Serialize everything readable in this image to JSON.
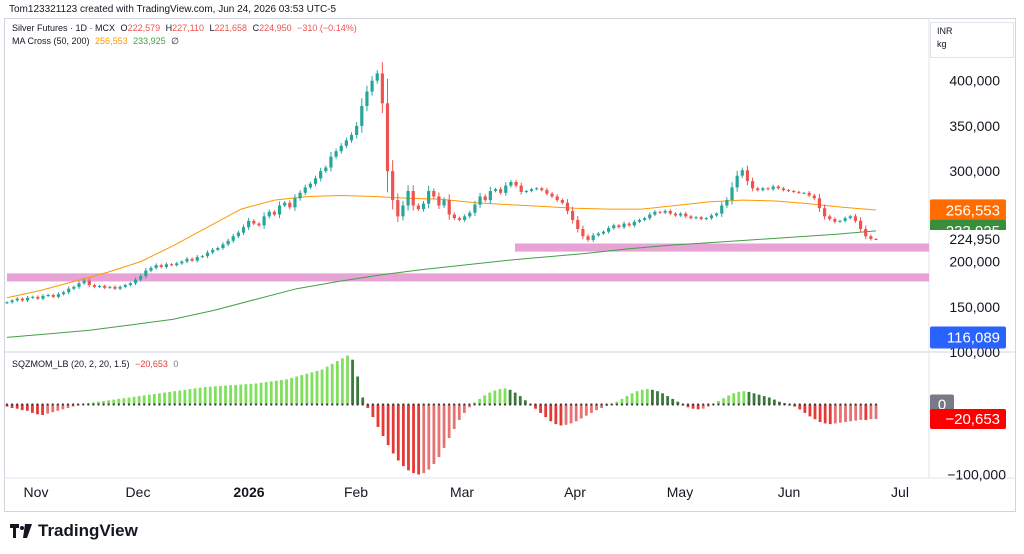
{
  "header": {
    "attribution": "Tom123321123 created with TradingView.com, Jun 24, 2026 03:53 UTC-5"
  },
  "legend": {
    "title": "Silver Futures · 1D · MCX",
    "o_label": "O",
    "o": "222,579",
    "h_label": "H",
    "h": "227,110",
    "l_label": "L",
    "l": "221,658",
    "c_label": "C",
    "c": "224,950",
    "change": "−310 (−0.14%)",
    "ma_name": "MA Cross (50, 200)",
    "ma_fast": "256,553",
    "ma_slow": "233,925",
    "ma_extra": "∅",
    "osc_name": "SQZMOM_LB (20, 2, 20, 1.5)",
    "osc_value": "−20,653",
    "osc_zero": "0"
  },
  "units": {
    "currency": "INR",
    "unit": "kg"
  },
  "footer": {
    "brand": "TradingView"
  },
  "colors": {
    "up": "#26a69a",
    "down": "#ef5350",
    "ma_fast": "#ff9800",
    "ma_slow": "#43a047",
    "zone": "#e499d1",
    "osc_lime": "#7ee05c",
    "osc_green": "#3a7a3a",
    "osc_red": "#e53935",
    "osc_maroon": "#e57373",
    "text": "#131722",
    "grid": "#d1d4dc"
  },
  "chart_data": [
    {
      "type": "candlestick",
      "title": "Silver Futures · 1D · MCX",
      "y_axis_ticks": [
        400000,
        350000,
        300000,
        200000,
        150000,
        100000
      ],
      "y_axis_range": [
        100000,
        445000
      ],
      "x_axis_ticks": [
        "Nov",
        "Dec",
        "2026",
        "Feb",
        "Mar",
        "Apr",
        "May",
        "Jun",
        "Jul"
      ],
      "price_labels": [
        {
          "value": 256553,
          "text": "256,553",
          "color": "#ff6d00"
        },
        {
          "value": 233925,
          "text": "233,925",
          "color": "#388e3c"
        },
        {
          "value": 224950,
          "text": "224,950",
          "color": "#ffffff"
        },
        {
          "value": 116089,
          "text": "116,089",
          "color": "#2962ff"
        }
      ],
      "support_zones": [
        [
          211000,
          220000
        ],
        [
          178000,
          187000
        ]
      ],
      "closes": [
        155000,
        157000,
        159000,
        157000,
        160000,
        161000,
        159000,
        162000,
        163000,
        161000,
        164000,
        166000,
        170000,
        172000,
        176000,
        179000,
        174000,
        172000,
        173000,
        171000,
        172000,
        170000,
        172000,
        174000,
        176000,
        180000,
        184000,
        190000,
        193000,
        196000,
        194000,
        197000,
        196000,
        198000,
        200000,
        203000,
        201000,
        205000,
        206000,
        210000,
        213000,
        215000,
        219000,
        223000,
        228000,
        232000,
        238000,
        245000,
        242000,
        240000,
        250000,
        255000,
        252000,
        262000,
        265000,
        260000,
        270000,
        276000,
        282000,
        286000,
        292000,
        300000,
        304000,
        316000,
        322000,
        328000,
        334000,
        340000,
        350000,
        372000,
        388000,
        400000,
        408000,
        375000,
        300000,
        268000,
        250000,
        262000,
        278000,
        262000,
        258000,
        264000,
        278000,
        272000,
        262000,
        268000,
        252000,
        248000,
        246000,
        250000,
        254000,
        263000,
        272000,
        268000,
        278000,
        280000,
        276000,
        284000,
        288000,
        284000,
        277000,
        278000,
        280000,
        281000,
        279000,
        275000,
        272000,
        268000,
        265000,
        256000,
        246000,
        236000,
        228000,
        224000,
        229000,
        231000,
        233000,
        237000,
        240000,
        238000,
        242000,
        240000,
        244000,
        246000,
        248000,
        252000,
        255000,
        254000,
        256000,
        253000,
        251000,
        253000,
        250000,
        248000,
        249000,
        247000,
        248000,
        251000,
        253000,
        262000,
        268000,
        282000,
        295000,
        301000,
        289000,
        281000,
        279000,
        281000,
        280000,
        283000,
        281000,
        279000,
        278000,
        277000,
        276000,
        276000,
        273000,
        270000,
        259000,
        250000,
        247000,
        244000,
        245000,
        248000,
        250000,
        245000,
        236000,
        228000,
        225000,
        224950
      ],
      "ma_fast": [
        160000,
        168000,
        178000,
        188000,
        200000,
        218000,
        238000,
        258000,
        268000,
        272000,
        273000,
        272000,
        270000,
        269000,
        265000,
        263000,
        261000,
        259000,
        258000,
        258000,
        262000,
        266000,
        268000,
        267000,
        264000,
        260000,
        257000
      ],
      "ma_slow": [
        116089,
        120000,
        124000,
        130000,
        136000,
        146000,
        158000,
        170000,
        178000,
        185000,
        191000,
        196000,
        201000,
        205000,
        209000,
        214000,
        218000,
        221000,
        224000,
        227000,
        230000,
        233925
      ]
    },
    {
      "type": "histogram",
      "title": "SQZMOM_LB (20, 2, 20, 1.5)",
      "y_axis_ticks": [
        -100000
      ],
      "y_axis_range": [
        -105000,
        75000
      ],
      "value_labels": [
        {
          "value": 0,
          "text": "0"
        },
        {
          "value": -20653,
          "text": "−20,653"
        }
      ],
      "values": [
        -3000,
        -5000,
        -6000,
        -8000,
        -9000,
        -12000,
        -14000,
        -15000,
        -13000,
        -11000,
        -9000,
        -7000,
        -5000,
        -3000,
        -1000,
        1000,
        2000,
        3000,
        4000,
        5000,
        6000,
        7000,
        8000,
        9000,
        10000,
        11000,
        12000,
        13000,
        14000,
        15000,
        16000,
        17000,
        18000,
        19000,
        20000,
        21000,
        22000,
        23000,
        24000,
        25000,
        25500,
        26000,
        26500,
        27000,
        27500,
        28000,
        28500,
        29000,
        29500,
        30000,
        31000,
        32000,
        33000,
        34000,
        35000,
        36000,
        38000,
        40000,
        42000,
        44000,
        46000,
        48000,
        50000,
        54000,
        58000,
        62000,
        66000,
        70000,
        64000,
        40000,
        10000,
        -5000,
        -18000,
        -32000,
        -45000,
        -58000,
        -70000,
        -80000,
        -88000,
        -94000,
        -98000,
        -100000,
        -98000,
        -93000,
        -85000,
        -75000,
        -62000,
        -48000,
        -35000,
        -22000,
        -12000,
        -4000,
        3000,
        8000,
        13000,
        17000,
        20000,
        22000,
        23000,
        21000,
        17000,
        12000,
        6000,
        0,
        -6000,
        -12000,
        -18000,
        -24000,
        -28000,
        -30000,
        -29000,
        -27000,
        -24000,
        -20000,
        -16000,
        -12000,
        -8000,
        -5000,
        -2000,
        1000,
        4000,
        8000,
        12000,
        16000,
        19000,
        21000,
        22000,
        21000,
        19000,
        16000,
        12000,
        8000,
        4000,
        0,
        -4000,
        -6000,
        -7000,
        -6000,
        -3000,
        1000,
        5000,
        9000,
        13000,
        16000,
        18000,
        19000,
        18000,
        16000,
        14000,
        12000,
        10000,
        7000,
        4000,
        2000,
        0,
        -3000,
        -7000,
        -12000,
        -17000,
        -21000,
        -25000,
        -27000,
        -28000,
        -27000,
        -26000,
        -25000,
        -24000,
        -23000,
        -22000,
        -22000,
        -21000,
        -20653
      ]
    }
  ]
}
